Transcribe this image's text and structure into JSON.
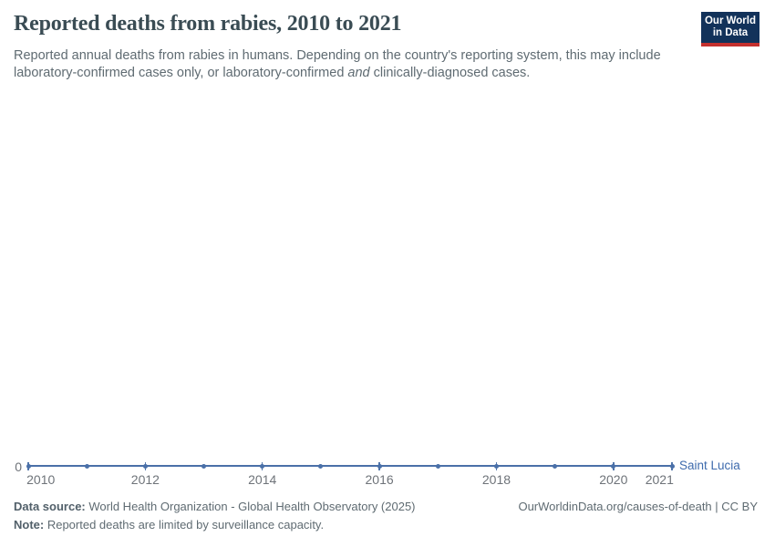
{
  "header": {
    "title": "Reported deaths from rabies, 2010 to 2021",
    "subtitle_line1": "Reported annual deaths from rabies in humans. Depending on the country's reporting system, this may include",
    "subtitle_line2_pre": "laboratory-confirmed cases only, or laboratory-confirmed",
    "subtitle_line2_italic": "and",
    "subtitle_line2_post": "clinically-diagnosed cases.",
    "logo": {
      "line1": "Our World",
      "line2": "in Data"
    }
  },
  "chart": {
    "y_zero_label": "0",
    "x_ticks": [
      "2010",
      "2012",
      "2014",
      "2016",
      "2018",
      "2020",
      "2021"
    ],
    "entity_label": "Saint Lucia"
  },
  "chart_data": {
    "type": "line",
    "title": "Reported deaths from rabies, 2010 to 2021",
    "x": [
      2010,
      2011,
      2012,
      2013,
      2014,
      2015,
      2016,
      2017,
      2018,
      2019,
      2020,
      2021
    ],
    "series": [
      {
        "name": "Saint Lucia",
        "values": [
          0,
          0,
          0,
          0,
          0,
          0,
          0,
          0,
          0,
          0,
          0,
          0
        ]
      }
    ],
    "xlabel": "",
    "ylabel": "",
    "ylim": [
      0,
      0
    ],
    "yticks": [
      0
    ],
    "grid": false,
    "legend_position": "end-of-line",
    "markers": true
  },
  "colors": {
    "line": "#4a70a8",
    "entity_label": "#3e6bad",
    "logo_bg": "#12325a",
    "logo_bar": "#c4302e"
  },
  "footer": {
    "datasource_label": "Data source:",
    "datasource_text": " World Health Organization - Global Health Observatory (2025)",
    "note_label": "Note:",
    "note_text": " Reported deaths are limited by surveillance capacity.",
    "rights": "OurWorldinData.org/causes-of-death | CC BY"
  }
}
